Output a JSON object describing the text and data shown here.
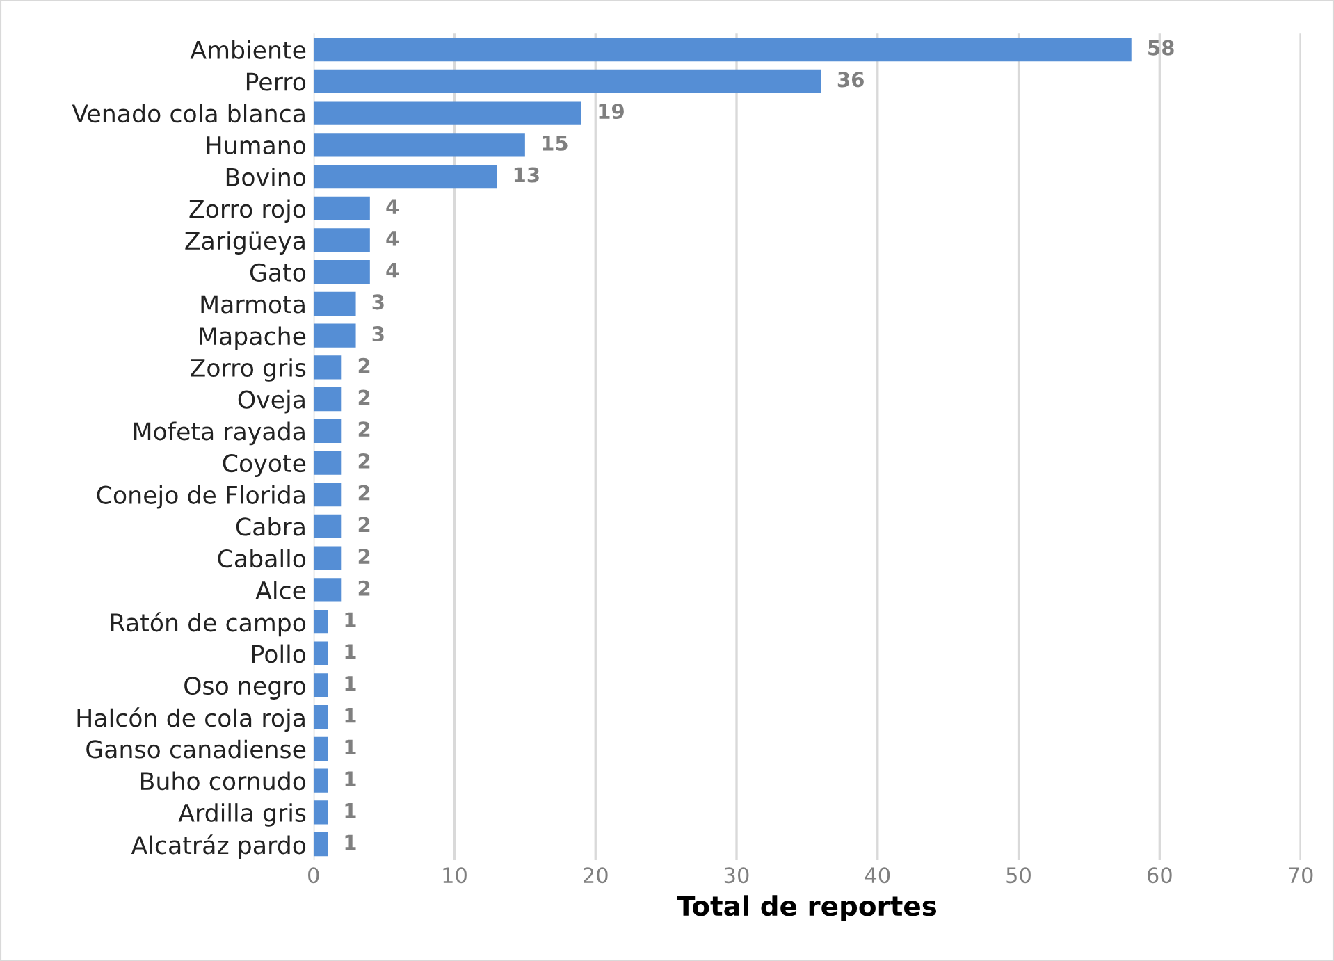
{
  "chart_data": {
    "type": "bar",
    "orientation": "horizontal",
    "xlabel": "Total de reportes",
    "categories": [
      "Ambiente",
      "Perro",
      "Venado cola blanca",
      "Humano",
      "Bovino",
      "Zorro rojo",
      "Zarigüeya",
      "Gato",
      "Marmota",
      "Mapache",
      "Zorro gris",
      "Oveja",
      "Mofeta rayada",
      "Coyote",
      "Conejo de Florida",
      "Cabra",
      "Caballo",
      "Alce",
      "Ratón de campo",
      "Pollo",
      "Oso negro",
      "Halcón de cola roja",
      "Ganso canadiense",
      "Buho cornudo",
      "Ardilla gris",
      "Alcatráz pardo"
    ],
    "values": [
      58,
      36,
      19,
      15,
      13,
      4,
      4,
      4,
      3,
      3,
      2,
      2,
      2,
      2,
      2,
      2,
      2,
      2,
      1,
      1,
      1,
      1,
      1,
      1,
      1,
      1
    ],
    "color": "#558ed5",
    "xlim": [
      0,
      70
    ],
    "xticks": [
      0,
      10,
      20,
      30,
      40,
      50,
      60,
      70
    ],
    "grid": "x",
    "data_labels": true,
    "legend": false
  }
}
